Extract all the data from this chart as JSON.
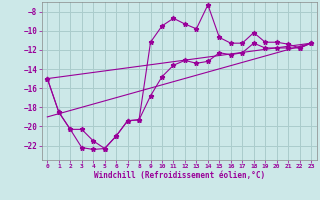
{
  "xlabel": "Windchill (Refroidissement éolien,°C)",
  "bg_color": "#cce8e8",
  "grid_color": "#aacccc",
  "line_color": "#990099",
  "spine_color": "#888888",
  "xlim": [
    -0.5,
    23.5
  ],
  "ylim": [
    -23.5,
    -7.0
  ],
  "yticks": [
    -22,
    -20,
    -18,
    -16,
    -14,
    -12,
    -10,
    -8
  ],
  "xticks": [
    0,
    1,
    2,
    3,
    4,
    5,
    6,
    7,
    8,
    9,
    10,
    11,
    12,
    13,
    14,
    15,
    16,
    17,
    18,
    19,
    20,
    21,
    22,
    23
  ],
  "series1_x": [
    0,
    1,
    2,
    3,
    4,
    5,
    6,
    7,
    8,
    9,
    10,
    11,
    12,
    13,
    14,
    15,
    16,
    17,
    18,
    19,
    20,
    21,
    22,
    23
  ],
  "series1_y": [
    -15.0,
    -18.5,
    -20.3,
    -22.2,
    -22.4,
    -22.3,
    -21.0,
    -19.4,
    -19.3,
    -11.2,
    -9.5,
    -8.7,
    -9.3,
    -9.8,
    -7.3,
    -10.7,
    -11.3,
    -11.3,
    -10.2,
    -11.2,
    -11.2,
    -11.4,
    -11.8,
    -11.3
  ],
  "series2_x": [
    0,
    1,
    2,
    3,
    4,
    5,
    6,
    7,
    8,
    9,
    10,
    11,
    12,
    13,
    14,
    15,
    16,
    17,
    18,
    19,
    20,
    21,
    22,
    23
  ],
  "series2_y": [
    -15.0,
    -18.5,
    -20.3,
    -20.3,
    -21.5,
    -22.3,
    -21.0,
    -19.4,
    -19.3,
    -16.8,
    -14.8,
    -13.6,
    -13.1,
    -13.4,
    -13.2,
    -12.3,
    -12.5,
    -12.3,
    -11.3,
    -11.8,
    -11.8,
    -11.8,
    -11.8,
    -11.3
  ],
  "series3_x": [
    0,
    23
  ],
  "series3_y": [
    -15.0,
    -11.3
  ],
  "series4_x": [
    0,
    23
  ],
  "series4_y": [
    -19.0,
    -11.3
  ]
}
